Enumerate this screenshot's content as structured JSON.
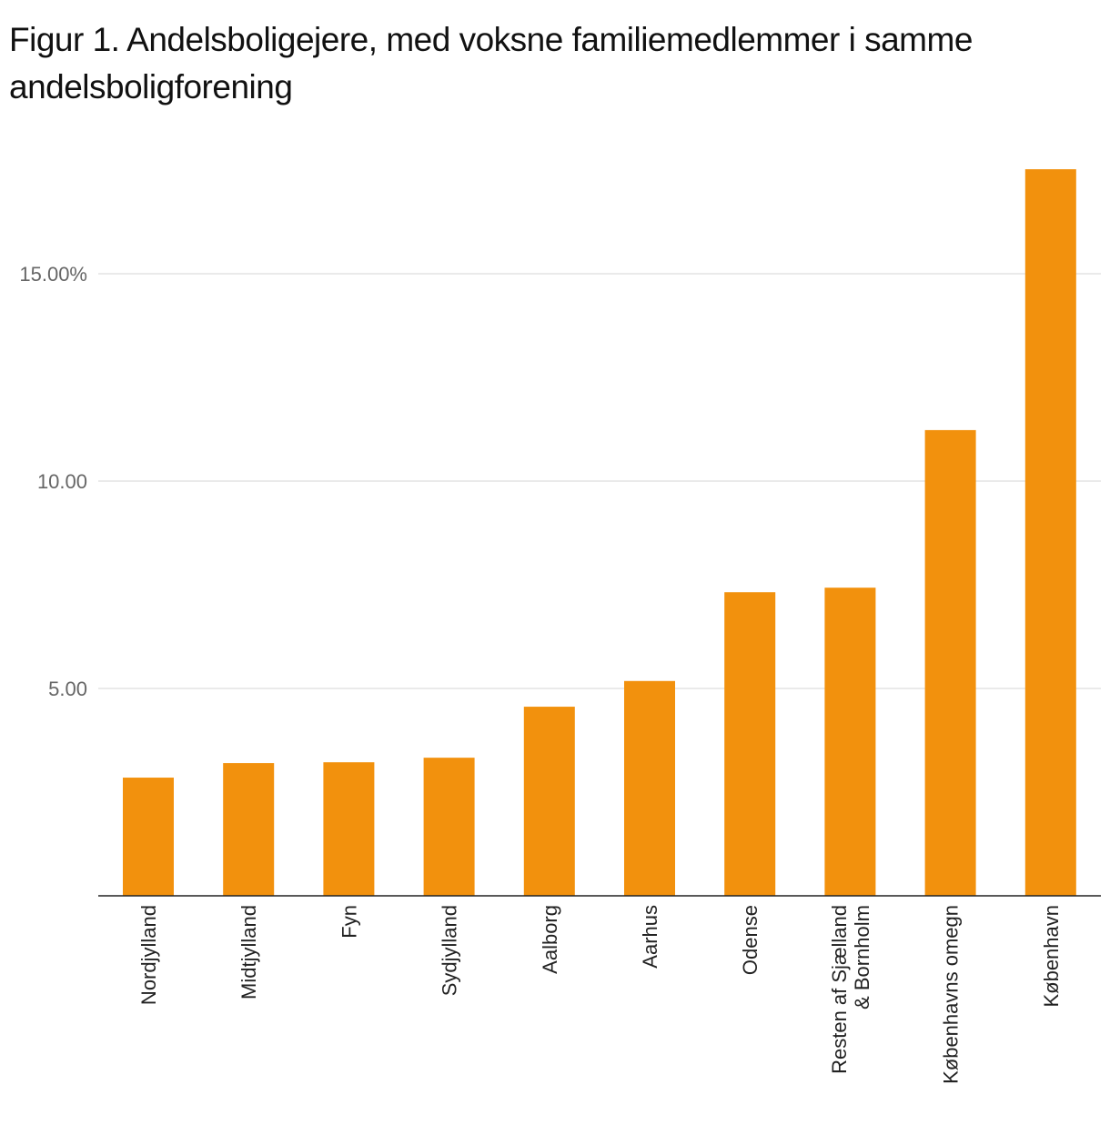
{
  "chart_data": {
    "type": "bar",
    "title": "Figur 1. Andelsboligejere, med voksne familiemedlemmer i samme andelsboligforening",
    "categories": [
      "Nordjylland",
      "Midtjylland",
      "Fyn",
      "Sydjylland",
      "Aalborg",
      "Aarhus",
      "Odense",
      "Resten af Sjælland\n& Bornholm",
      "Københavns omegn",
      "København"
    ],
    "values": [
      2.85,
      3.2,
      3.22,
      3.33,
      4.56,
      5.18,
      7.32,
      7.43,
      11.23,
      17.52
    ],
    "yticks": [
      5,
      10,
      15
    ],
    "ytick_labels": [
      "5.00",
      "10.00",
      "15.00%"
    ],
    "ylim": [
      0,
      18.5
    ],
    "grid": true,
    "bar_color": "#F2910D",
    "xlabel": "",
    "ylabel": ""
  }
}
